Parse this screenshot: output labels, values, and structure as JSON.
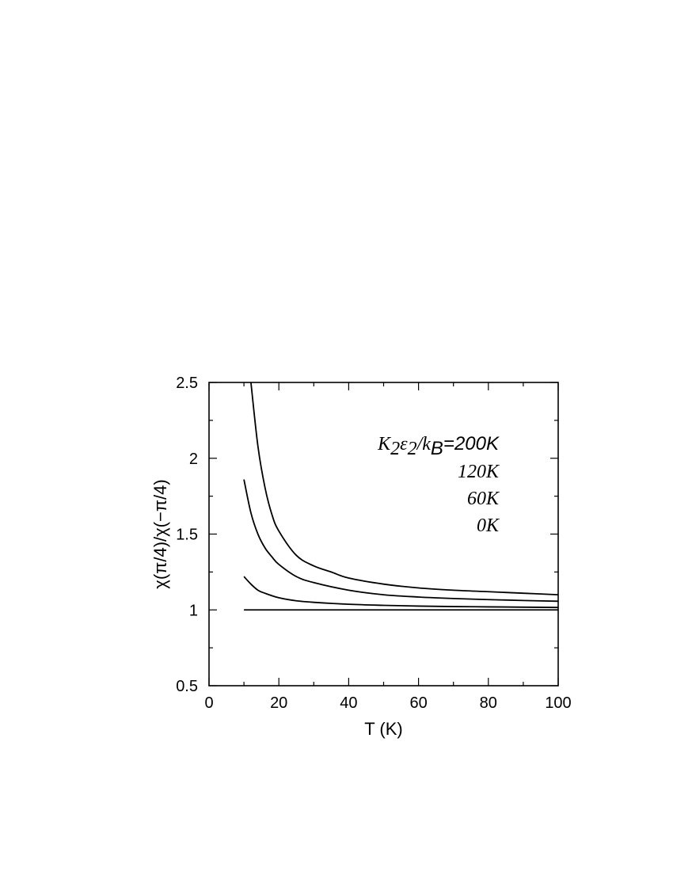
{
  "chart_data": {
    "type": "line",
    "xlabel": "T (K)",
    "ylabel": "χ(π/4)/χ(−π/4)",
    "xlim": [
      0,
      100
    ],
    "ylim": [
      0.5,
      2.5
    ],
    "xticks": [
      0,
      20,
      40,
      60,
      80,
      100
    ],
    "yticks": [
      0.5,
      1,
      1.5,
      2,
      2.5
    ],
    "grid": false,
    "legend_placement": "top-right",
    "legend": {
      "title_parts": [
        "K",
        "2",
        "ε",
        "2",
        "/k",
        "B",
        "=200K"
      ],
      "entries": [
        "120K",
        "60K",
        "0K"
      ]
    },
    "series": [
      {
        "x": [
          12,
          14,
          16,
          18,
          20,
          25,
          30,
          35,
          40,
          50,
          60,
          70,
          80,
          90,
          100
        ],
        "y": [
          2.5,
          2.08,
          1.81,
          1.63,
          1.52,
          1.36,
          1.29,
          1.25,
          1.21,
          1.17,
          1.145,
          1.13,
          1.12,
          1.11,
          1.1
        ]
      },
      {
        "x": [
          10,
          12,
          14,
          16,
          18,
          20,
          25,
          30,
          40,
          50,
          60,
          70,
          80,
          90,
          100
        ],
        "y": [
          1.86,
          1.64,
          1.5,
          1.41,
          1.35,
          1.3,
          1.22,
          1.18,
          1.13,
          1.1,
          1.085,
          1.075,
          1.068,
          1.062,
          1.057
        ]
      },
      {
        "x": [
          10,
          12,
          14,
          16,
          20,
          25,
          30,
          40,
          50,
          60,
          70,
          80,
          90,
          100
        ],
        "y": [
          1.22,
          1.17,
          1.13,
          1.11,
          1.08,
          1.06,
          1.05,
          1.037,
          1.03,
          1.025,
          1.022,
          1.02,
          1.018,
          1.016
        ]
      },
      {
        "x": [
          10,
          100
        ],
        "y": [
          1.0,
          1.0
        ]
      }
    ]
  }
}
